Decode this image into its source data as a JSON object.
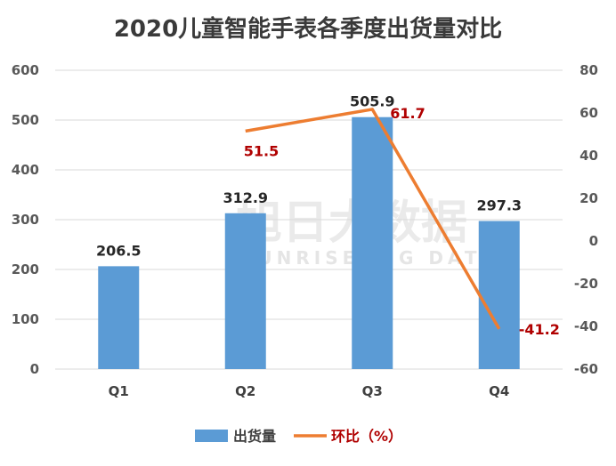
{
  "chart_data": {
    "type": "bar",
    "title": "2020儿童智能手表各季度出货量对比",
    "categories": [
      "Q1",
      "Q2",
      "Q3",
      "Q4"
    ],
    "series": [
      {
        "name": "出货量",
        "type": "bar",
        "axis": "left",
        "values": [
          206.5,
          312.9,
          505.9,
          297.3
        ],
        "color": "#5b9bd5"
      },
      {
        "name": "环比（%）",
        "type": "line",
        "axis": "right",
        "values": [
          null,
          51.5,
          61.7,
          -41.2
        ],
        "color": "#ed7d31"
      }
    ],
    "ylim_left": [
      0,
      600
    ],
    "yticks_left": [
      "0",
      "100",
      "200",
      "300",
      "400",
      "500",
      "600"
    ],
    "ylim_right": [
      -60,
      80
    ],
    "yticks_right": [
      "-60",
      "-40",
      "-20",
      "0",
      "20",
      "40",
      "60",
      "80"
    ],
    "grid": true,
    "legend_position": "bottom",
    "data_label_colors": {
      "bar": "#262626",
      "line": "#b00000"
    }
  },
  "watermark": {
    "cn": "旭日大数据",
    "en": "SUNRISE BIG DATA"
  }
}
